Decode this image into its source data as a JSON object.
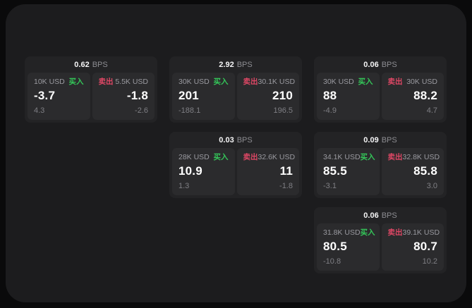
{
  "cards": [
    {
      "grid": {
        "row": 1,
        "col": 1
      },
      "bps": "0.62",
      "bps_unit": "BPS",
      "buy": {
        "amount": "10K USD",
        "side_label": "买入",
        "value": "-3.7",
        "delta": "4.3"
      },
      "sell": {
        "side_label": "卖出",
        "amount": "5.5K USD",
        "value": "-1.8",
        "delta": "-2.6"
      }
    },
    {
      "grid": {
        "row": 1,
        "col": 2
      },
      "bps": "2.92",
      "bps_unit": "BPS",
      "buy": {
        "amount": "30K USD",
        "side_label": "买入",
        "value": "201",
        "delta": "-188.1"
      },
      "sell": {
        "side_label": "卖出",
        "amount": "30.1K USD",
        "value": "210",
        "delta": "196.5"
      }
    },
    {
      "grid": {
        "row": 1,
        "col": 3
      },
      "bps": "0.06",
      "bps_unit": "BPS",
      "buy": {
        "amount": "30K USD",
        "side_label": "买入",
        "value": "88",
        "delta": "-4.9"
      },
      "sell": {
        "side_label": "卖出",
        "amount": "30K USD",
        "value": "88.2",
        "delta": "4.7"
      }
    },
    {
      "grid": {
        "row": 2,
        "col": 2
      },
      "bps": "0.03",
      "bps_unit": "BPS",
      "buy": {
        "amount": "28K USD",
        "side_label": "买入",
        "value": "10.9",
        "delta": "1.3"
      },
      "sell": {
        "side_label": "卖出",
        "amount": "32.6K USD",
        "value": "11",
        "delta": "-1.8"
      }
    },
    {
      "grid": {
        "row": 2,
        "col": 3
      },
      "bps": "0.09",
      "bps_unit": "BPS",
      "buy": {
        "amount": "34.1K USD",
        "side_label": "买入",
        "value": "85.5",
        "delta": "-3.1"
      },
      "sell": {
        "side_label": "卖出",
        "amount": "32.8K USD",
        "value": "85.8",
        "delta": "3.0"
      }
    },
    {
      "grid": {
        "row": 3,
        "col": 3
      },
      "bps": "0.06",
      "bps_unit": "BPS",
      "buy": {
        "amount": "31.8K USD",
        "side_label": "买入",
        "value": "80.5",
        "delta": "-10.8"
      },
      "sell": {
        "side_label": "卖出",
        "amount": "39.1K USD",
        "value": "80.7",
        "delta": "10.2"
      }
    }
  ],
  "colors": {
    "background": "#0a0a0b",
    "panel": "#1c1c1e",
    "card": "#232325",
    "subpanel": "#2b2b2d",
    "buy_green": "#34c759",
    "sell_red": "#de4765",
    "label_gray": "#9a9aa0",
    "delta_gray": "#7f7f84",
    "value_white": "#ffffff"
  }
}
